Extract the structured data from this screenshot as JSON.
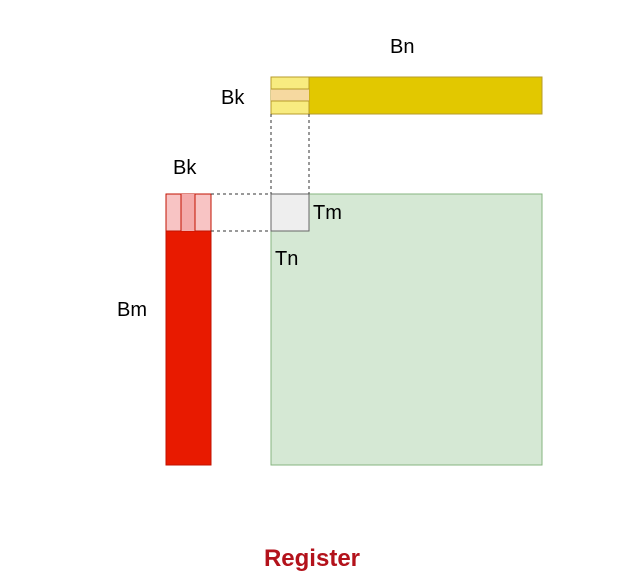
{
  "labels": {
    "bn": "Bn",
    "bk_top": "Bk",
    "bk_left": "Bk",
    "tm": "Tm",
    "tn": "Tn",
    "bm": "Bm"
  },
  "caption": {
    "text": "Register",
    "color": "#b3121b"
  },
  "colors": {
    "b_tile_fill": "#e2c800",
    "b_tile_stroke": "#b79b2a",
    "b_slice_fill": "#f8ec80",
    "b_slice_band": "#f6d9a0",
    "a_tile_fill": "#e81a00",
    "a_tile_stroke": "#c21200",
    "a_slice_fill": "#f8c4c4",
    "a_slice_band": "#f4aaaa",
    "c_tile_fill": "#d5e8d4",
    "c_tile_stroke": "#86b47f",
    "thread_tile_fill": "#eeeeee",
    "thread_tile_stroke": "#666666",
    "guide_line": "#333333"
  }
}
